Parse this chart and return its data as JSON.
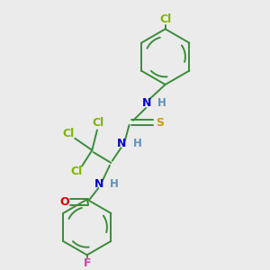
{
  "background_color": "#ebebeb",
  "bond_color": "#3a8c3a",
  "atom_colors": {
    "Cl": "#7db500",
    "N": "#0000cc",
    "H": "#6090bb",
    "S": "#c8a000",
    "O": "#dd0000",
    "F": "#cc44aa"
  },
  "figsize": [
    3.0,
    3.0
  ],
  "dpi": 100
}
